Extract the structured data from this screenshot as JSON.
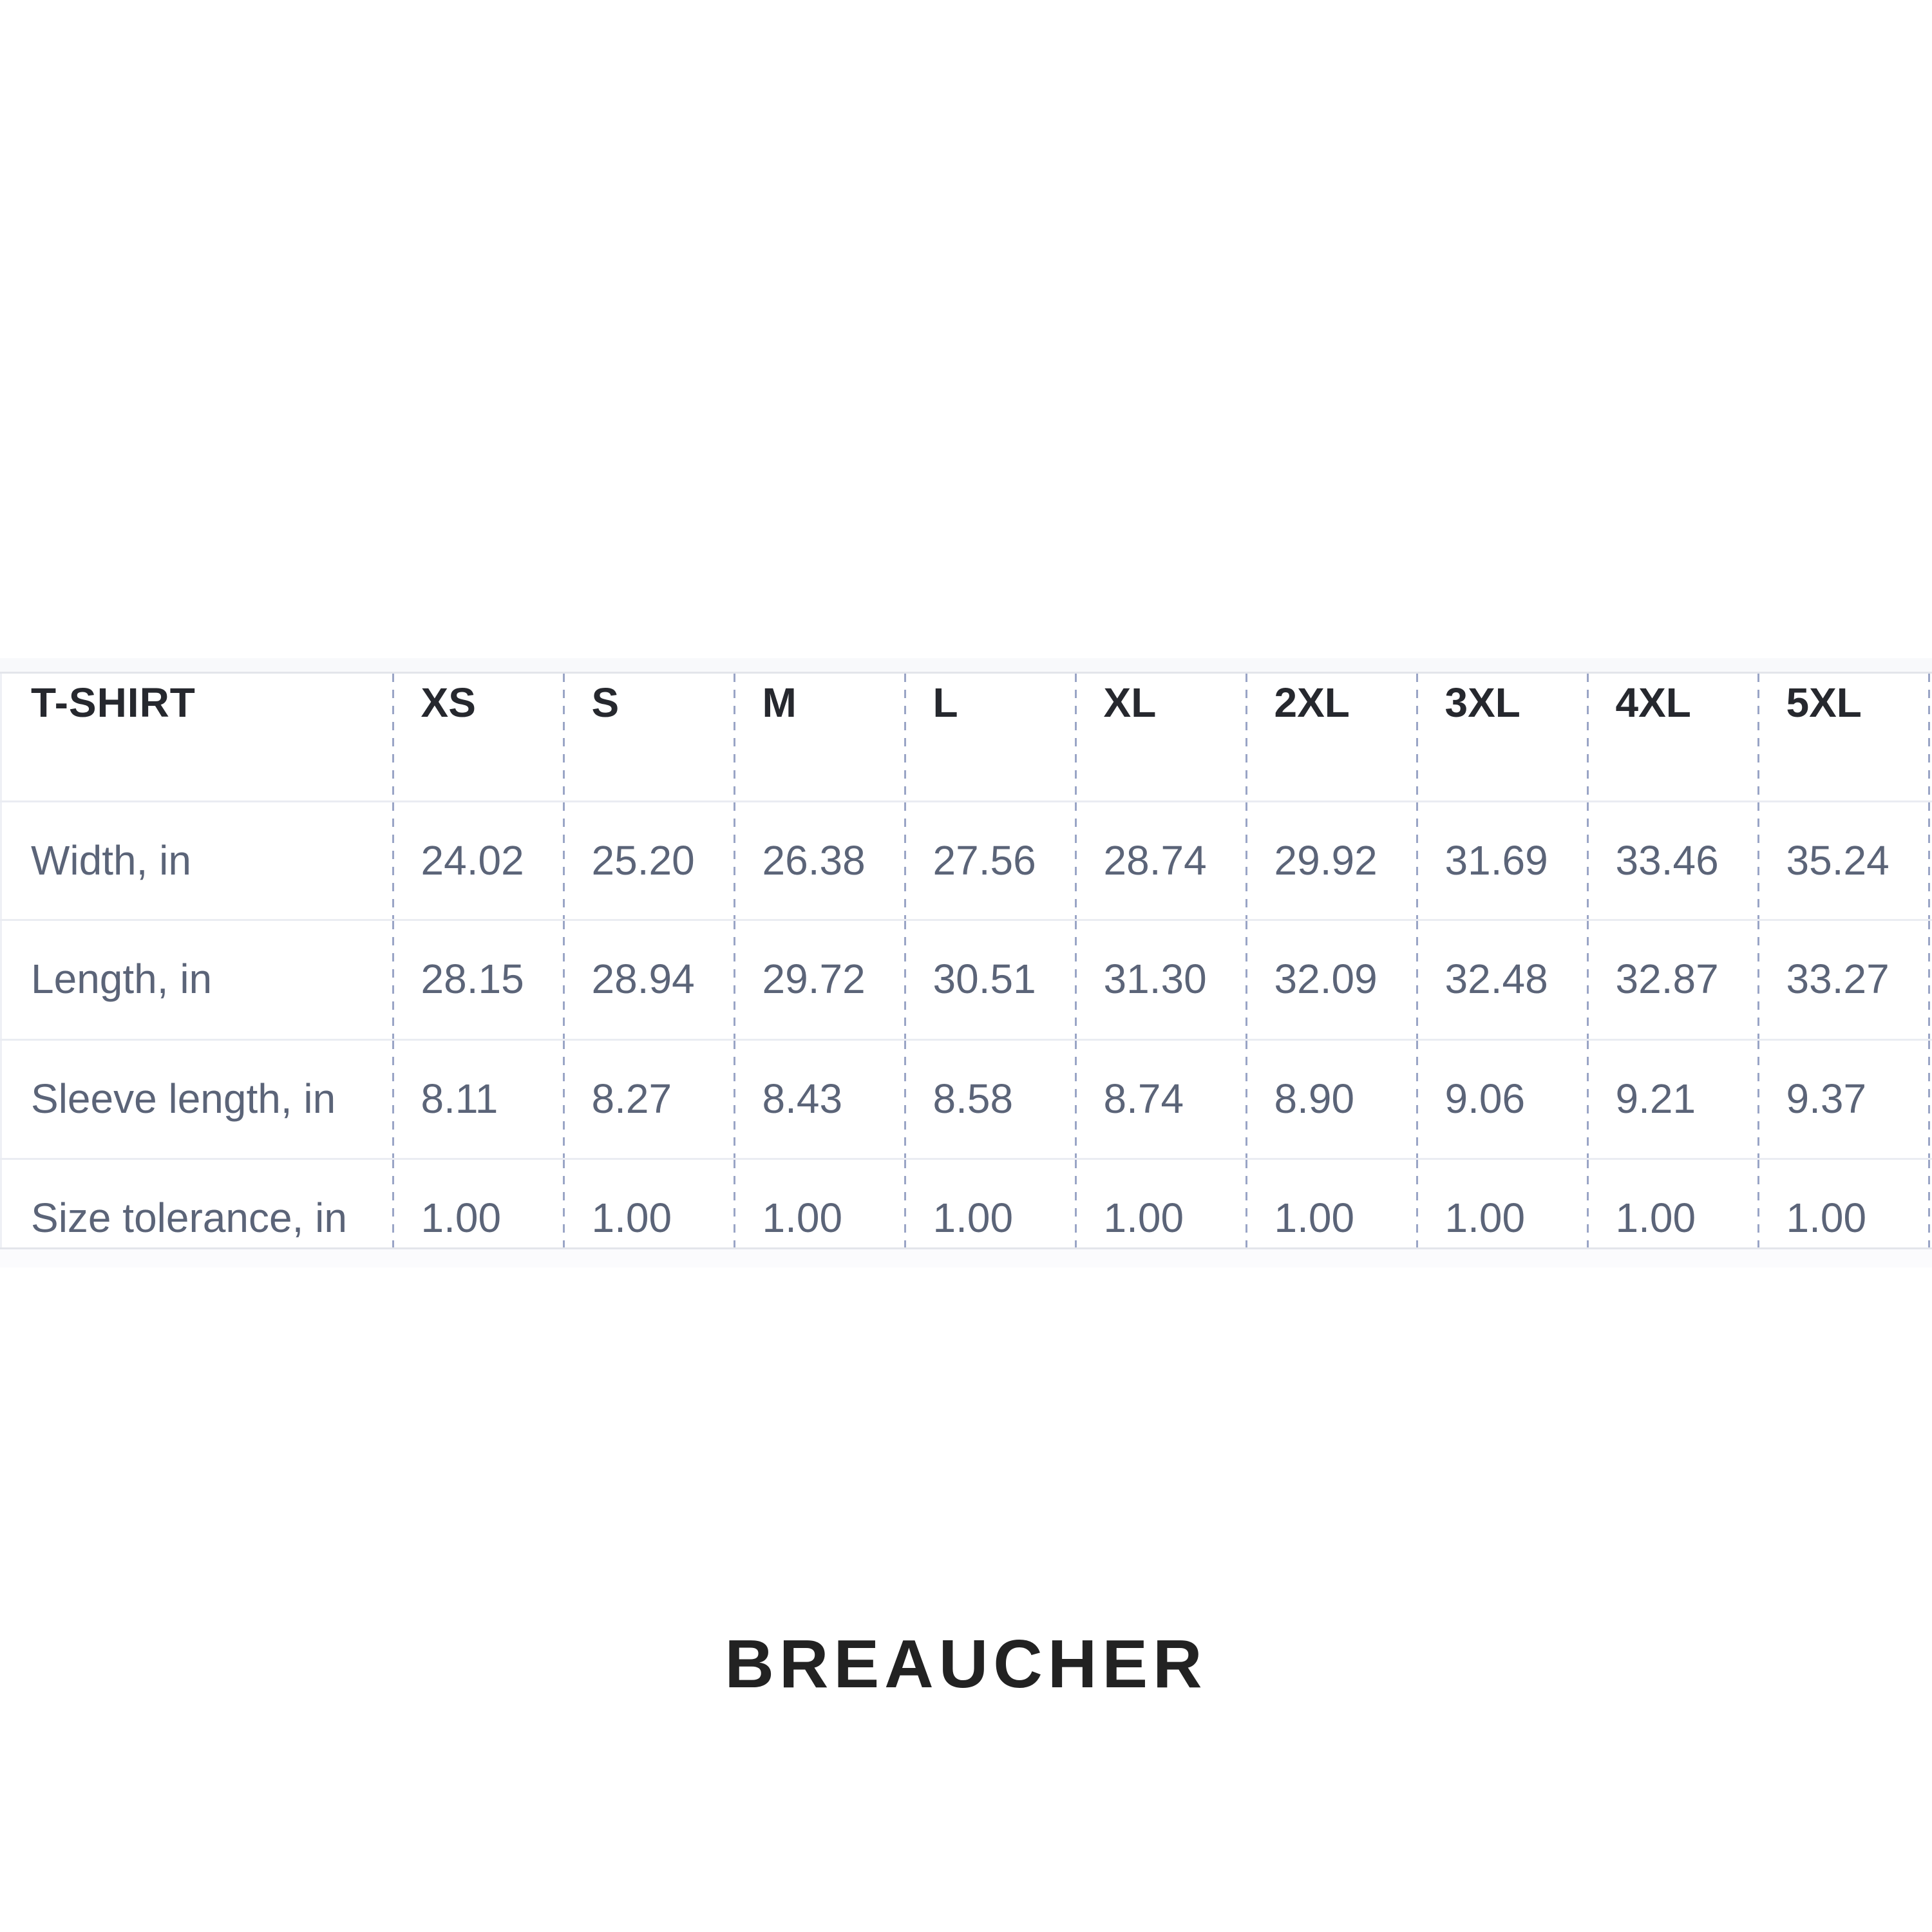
{
  "size_chart": {
    "product_label": "T-SHIRT",
    "unit_note": "in",
    "size_headers": [
      "XS",
      "S",
      "M",
      "L",
      "XL",
      "2XL",
      "3XL",
      "4XL",
      "5XL"
    ],
    "rows": [
      {
        "label": "Width, in",
        "values": [
          "24.02",
          "25.20",
          "26.38",
          "27.56",
          "28.74",
          "29.92",
          "31.69",
          "33.46",
          "35.24"
        ]
      },
      {
        "label": "Length, in",
        "values": [
          "28.15",
          "28.94",
          "29.72",
          "30.51",
          "31.30",
          "32.09",
          "32.48",
          "32.87",
          "33.27"
        ]
      },
      {
        "label": "Sleeve length, in",
        "values": [
          "8.11",
          "8.27",
          "8.43",
          "8.58",
          "8.74",
          "8.90",
          "9.06",
          "9.21",
          "9.37"
        ]
      },
      {
        "label": "Size tolerance, in",
        "values": [
          "1.00",
          "1.00",
          "1.00",
          "1.00",
          "1.00",
          "1.00",
          "1.00",
          "1.00",
          "1.00"
        ]
      }
    ]
  },
  "brand": {
    "name": "BREAUCHER"
  },
  "colors": {
    "background": "#ffffff",
    "header_text": "#26282e",
    "value_text": "#5b6478",
    "dashed_separator": "#9aa5c6",
    "row_border": "#eaecf2",
    "table_border": "#e3e5eb",
    "brand_text": "#222222"
  }
}
